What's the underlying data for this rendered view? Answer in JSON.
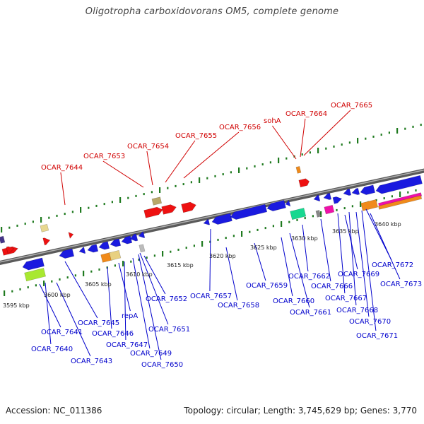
{
  "title": "Oligotropha carboxidovorans OM5, complete genome",
  "footer": {
    "accession": "Accession: NC_011386",
    "info": "Topology: circular; Length: 3,745,629 bp; Genes: 3,770"
  },
  "colors": {
    "backbone": "#777777",
    "tick": "#1f7a1f",
    "upper_label": "#d00000",
    "lower_label": "#0000cc",
    "gene_blue": "#1a1adf",
    "gene_red": "#ee1111",
    "gene_orange": "#f08a1a",
    "gene_tan": "#b8a868",
    "gene_lime": "#a8e830",
    "gene_teal": "#18d890",
    "gene_magenta": "#ee10a8",
    "gene_khaki": "#e8d890"
  },
  "scale": {
    "unit": "kbp",
    "labels": [
      "3595 kbp",
      "3600 kbp",
      "3605 kbp",
      "3610 kbp",
      "3615 kbp",
      "3620 kbp",
      "3625 kbp",
      "3630 kbp",
      "3635 kbp",
      "3640 kbp"
    ]
  },
  "upper_genes": [
    "OCAR_7644",
    "OCAR_7653",
    "OCAR_7654",
    "OCAR_7655",
    "OCAR_7656",
    "sohA",
    "OCAR_7664",
    "OCAR_7665"
  ],
  "lower_genes": [
    "OCAR_7641",
    "OCAR_7640",
    "OCAR_7643",
    "OCAR_7645",
    "OCAR_7646",
    "repA",
    "OCAR_7647",
    "OCAR_7649",
    "OCAR_7650",
    "OCAR_7651",
    "OCAR_7652",
    "OCAR_7657",
    "OCAR_7658",
    "OCAR_7659",
    "OCAR_7660",
    "OCAR_7661",
    "OCAR_7662",
    "OCAR_7666",
    "OCAR_7667",
    "OCAR_7668",
    "OCAR_7669",
    "OCAR_7670",
    "OCAR_7671",
    "OCAR_7672",
    "OCAR_7673"
  ]
}
